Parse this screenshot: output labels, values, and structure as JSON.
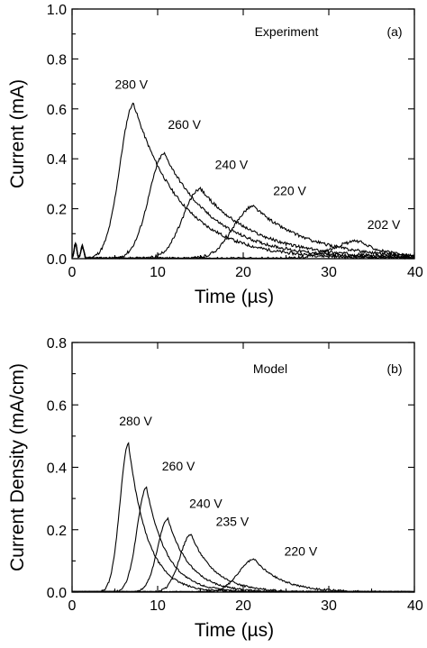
{
  "chart_data": [
    {
      "type": "line",
      "panel": "(a)",
      "annotation": "Experiment",
      "xlabel": "Time (µs)",
      "ylabel": "Current (mA)",
      "xlim": [
        0,
        40
      ],
      "ylim": [
        0.0,
        1.0
      ],
      "xticks": [
        "0",
        "10",
        "20",
        "30",
        "40"
      ],
      "yticks": [
        "0.0",
        "0.2",
        "0.4",
        "0.6",
        "0.8",
        "1.0"
      ],
      "series": [
        {
          "name": "280 V",
          "peak_x": 7.2,
          "peak_y": 0.62,
          "rise": 1.6,
          "fall": 5.5,
          "label_x": 5.0,
          "label_y": 0.68
        },
        {
          "name": "260 V",
          "peak_x": 10.8,
          "peak_y": 0.42,
          "rise": 1.8,
          "fall": 6.0,
          "label_x": 11.2,
          "label_y": 0.52
        },
        {
          "name": "240 V",
          "peak_x": 15.0,
          "peak_y": 0.28,
          "rise": 2.0,
          "fall": 6.5,
          "label_x": 16.7,
          "label_y": 0.36
        },
        {
          "name": "220 V",
          "peak_x": 21.2,
          "peak_y": 0.21,
          "rise": 2.3,
          "fall": 6.5,
          "label_x": 23.5,
          "label_y": 0.255
        },
        {
          "name": "202 V",
          "peak_x": 33.5,
          "peak_y": 0.07,
          "rise": 3.0,
          "fall": 3.5,
          "label_x": 34.5,
          "label_y": 0.12
        }
      ]
    },
    {
      "type": "line",
      "panel": "(b)",
      "annotation": "Model",
      "xlabel": "Time (µs)",
      "ylabel": "Current Density (mA/cm)",
      "xlim": [
        0,
        40
      ],
      "ylim": [
        0.0,
        0.8
      ],
      "xticks": [
        "0",
        "10",
        "20",
        "30",
        "40"
      ],
      "yticks": [
        "0.0",
        "0.2",
        "0.4",
        "0.6",
        "0.8"
      ],
      "series": [
        {
          "name": "280 V",
          "peak_x": 6.6,
          "peak_y": 0.475,
          "rise": 1.0,
          "fall": 2.2,
          "label_x": 5.5,
          "label_y": 0.535
        },
        {
          "name": "260 V",
          "peak_x": 8.7,
          "peak_y": 0.335,
          "rise": 1.1,
          "fall": 2.4,
          "label_x": 10.5,
          "label_y": 0.39
        },
        {
          "name": "240 V",
          "peak_x": 11.2,
          "peak_y": 0.235,
          "rise": 1.2,
          "fall": 2.6,
          "label_x": 13.7,
          "label_y": 0.27
        },
        {
          "name": "235 V",
          "peak_x": 13.9,
          "peak_y": 0.185,
          "rise": 1.3,
          "fall": 2.8,
          "label_x": 16.8,
          "label_y": 0.212
        },
        {
          "name": "220 V",
          "peak_x": 21.3,
          "peak_y": 0.105,
          "rise": 1.8,
          "fall": 3.2,
          "label_x": 24.8,
          "label_y": 0.117
        }
      ]
    }
  ]
}
